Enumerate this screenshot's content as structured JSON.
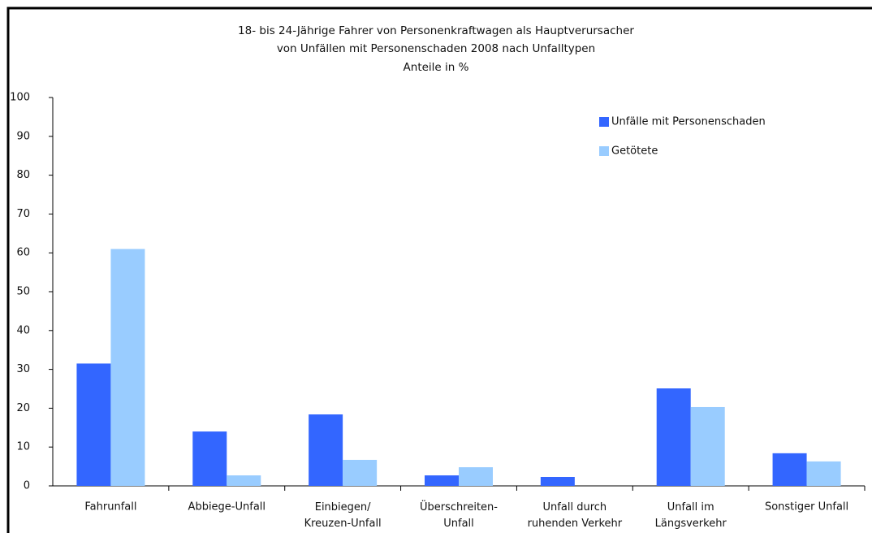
{
  "chart_data": {
    "type": "bar",
    "title": "18- bis 24-Jährige Fahrer von Personenkraftwagen als Hauptverursacher",
    "title_line2": "von Unfällen mit Personenschaden 2008 nach Unfalltypen",
    "subtitle": "Anteile in %",
    "categories": [
      "Fahrunfall",
      "Abbiege-Unfall",
      "Einbiegen/\nKreuzen-Unfall",
      "Überschreiten-\nUnfall",
      "Unfall durch\nruhenden Verkehr",
      "Unfall im\nLängsverkehr",
      "Sonstiger Unfall"
    ],
    "series": [
      {
        "name": "Unfälle mit Personenschaden",
        "color": "#3366ff",
        "values": [
          31.5,
          14,
          18.4,
          2.7,
          2.3,
          25.1,
          8.4
        ]
      },
      {
        "name": "Getötete",
        "color": "#99ccff",
        "values": [
          61,
          2.7,
          6.7,
          4.8,
          0,
          20.3,
          6.3
        ]
      }
    ],
    "ylim": [
      0,
      100
    ],
    "yticks": [
      0,
      10,
      20,
      30,
      40,
      50,
      60,
      70,
      80,
      90,
      100
    ],
    "grid": false,
    "legend": "top-right"
  }
}
